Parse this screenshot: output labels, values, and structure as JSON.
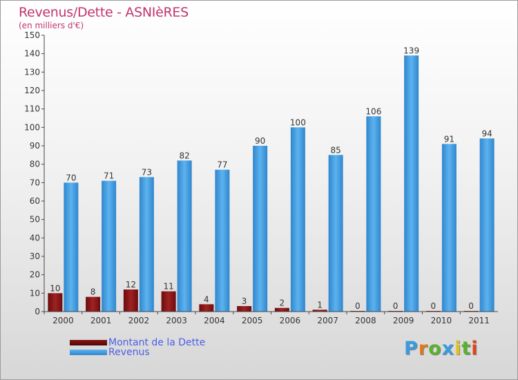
{
  "title": "Revenus/Dette - ASNIèRES",
  "subtitle": "(en milliers d'€)",
  "colors": {
    "title": "#c0356e",
    "dette": "#7a1010",
    "revenus": "#3a9ae0",
    "legend_text": "#4a5ee8"
  },
  "legend": [
    {
      "label": "Montant de la Dette",
      "color": "#6b0d0d"
    },
    {
      "label": "Revenus",
      "color": "#3a9ae0"
    }
  ],
  "logo": {
    "letters": [
      "P",
      "r",
      "o",
      "x",
      "i",
      "t",
      "i"
    ],
    "colors": [
      "#3a9ae0",
      "#e07a1a",
      "#5bb030",
      "#3a9ae0",
      "#e0c21a",
      "#5bb030",
      "#e0431a"
    ]
  },
  "chart_data": {
    "type": "bar",
    "categories": [
      "2000",
      "2001",
      "2002",
      "2003",
      "2004",
      "2005",
      "2006",
      "2007",
      "2008",
      "2009",
      "2010",
      "2011"
    ],
    "series": [
      {
        "name": "Montant de la Dette",
        "values": [
          10,
          8,
          12,
          11,
          4,
          3,
          2,
          1,
          0,
          0,
          0,
          0
        ]
      },
      {
        "name": "Revenus",
        "values": [
          70,
          71,
          73,
          82,
          77,
          90,
          100,
          85,
          106,
          139,
          91,
          94
        ]
      }
    ],
    "title": "Revenus/Dette - ASNIèRES",
    "ylabel": "",
    "xlabel": "",
    "ylim": [
      0,
      150
    ],
    "yticks": [
      0,
      10,
      20,
      30,
      40,
      50,
      60,
      70,
      80,
      90,
      100,
      110,
      120,
      130,
      140,
      150
    ],
    "grid": false,
    "legend_position": "bottom-left"
  }
}
